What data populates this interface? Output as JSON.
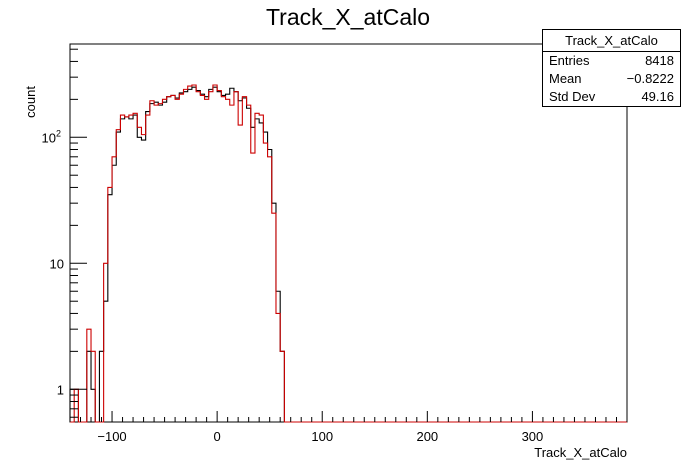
{
  "title": "Track_X_atCalo",
  "stats": {
    "name": "Track_X_atCalo",
    "rows": [
      {
        "label": "Entries",
        "value": "8418"
      },
      {
        "label": "Mean",
        "value": "−0.8222"
      },
      {
        "label": "Std Dev",
        "value": "49.16"
      }
    ]
  },
  "chart_data": {
    "type": "histogram",
    "title": "Track_X_atCalo",
    "xlabel": "Track_X_atCalo",
    "ylabel": "count",
    "xlim": [
      -140,
      390
    ],
    "ylim": [
      0.55,
      550
    ],
    "yscale": "log",
    "x_ticks": [
      {
        "value": -100,
        "label": "−100"
      },
      {
        "value": 0,
        "label": "0"
      },
      {
        "value": 100,
        "label": "100"
      },
      {
        "value": 200,
        "label": "200"
      },
      {
        "value": 300,
        "label": "300"
      }
    ],
    "y_ticks": [
      {
        "value": 1,
        "label": "1"
      },
      {
        "value": 10,
        "label": "10"
      },
      {
        "value": 100,
        "label": "10",
        "exponent": "2"
      }
    ],
    "bin_edges": {
      "start": -140,
      "width": 4
    },
    "series": [
      {
        "color": "#000000",
        "values": [
          1,
          1,
          0,
          0,
          2,
          1,
          0,
          2,
          5,
          35,
          60,
          110,
          140,
          145,
          140,
          150,
          100,
          95,
          160,
          185,
          190,
          180,
          190,
          210,
          215,
          205,
          225,
          230,
          240,
          250,
          235,
          220,
          210,
          240,
          250,
          230,
          215,
          220,
          245,
          230,
          195,
          205,
          170,
          120,
          140,
          130,
          110,
          80,
          30,
          6,
          2,
          0,
          0,
          0,
          0,
          0,
          0,
          0,
          0,
          0,
          0,
          0,
          0,
          0,
          0,
          0,
          0,
          0,
          0,
          0,
          0,
          0,
          0,
          0,
          0,
          0,
          0,
          0,
          0,
          0,
          0,
          0,
          0,
          0,
          0,
          0,
          0,
          0,
          0,
          0,
          0,
          0,
          0,
          0,
          0,
          0,
          0,
          0,
          0,
          0,
          0,
          0,
          0,
          0,
          0,
          0,
          0,
          0,
          0,
          0,
          0,
          0,
          0,
          0,
          0,
          0,
          0,
          0,
          0,
          0,
          0,
          0,
          0,
          0,
          0,
          0,
          0,
          0,
          0,
          0,
          0,
          0,
          0
        ]
      },
      {
        "color": "#cc0000",
        "values": [
          0,
          1,
          0,
          0,
          3,
          2,
          0,
          0,
          10,
          40,
          70,
          115,
          150,
          145,
          150,
          155,
          120,
          105,
          150,
          195,
          180,
          185,
          200,
          210,
          215,
          200,
          220,
          240,
          255,
          260,
          230,
          215,
          200,
          230,
          260,
          235,
          210,
          200,
          180,
          230,
          125,
          210,
          180,
          75,
          155,
          150,
          90,
          70,
          25,
          4,
          2,
          0,
          0,
          0,
          0,
          0,
          0,
          0,
          0,
          0,
          0,
          0,
          0,
          0,
          0,
          0,
          0,
          0,
          0,
          0,
          0,
          0,
          0,
          0,
          0,
          0,
          0,
          0,
          0,
          0,
          0,
          0,
          0,
          0,
          0,
          0,
          0,
          0,
          0,
          0,
          0,
          0,
          0,
          0,
          0,
          0,
          0,
          0,
          0,
          0,
          0,
          0,
          0,
          0,
          0,
          0,
          0,
          0,
          0,
          0,
          0,
          0,
          0,
          0,
          0,
          0,
          0,
          0,
          0,
          0,
          0,
          0,
          0,
          0,
          0,
          0,
          0,
          0,
          0,
          0,
          0,
          0,
          0
        ]
      }
    ]
  }
}
